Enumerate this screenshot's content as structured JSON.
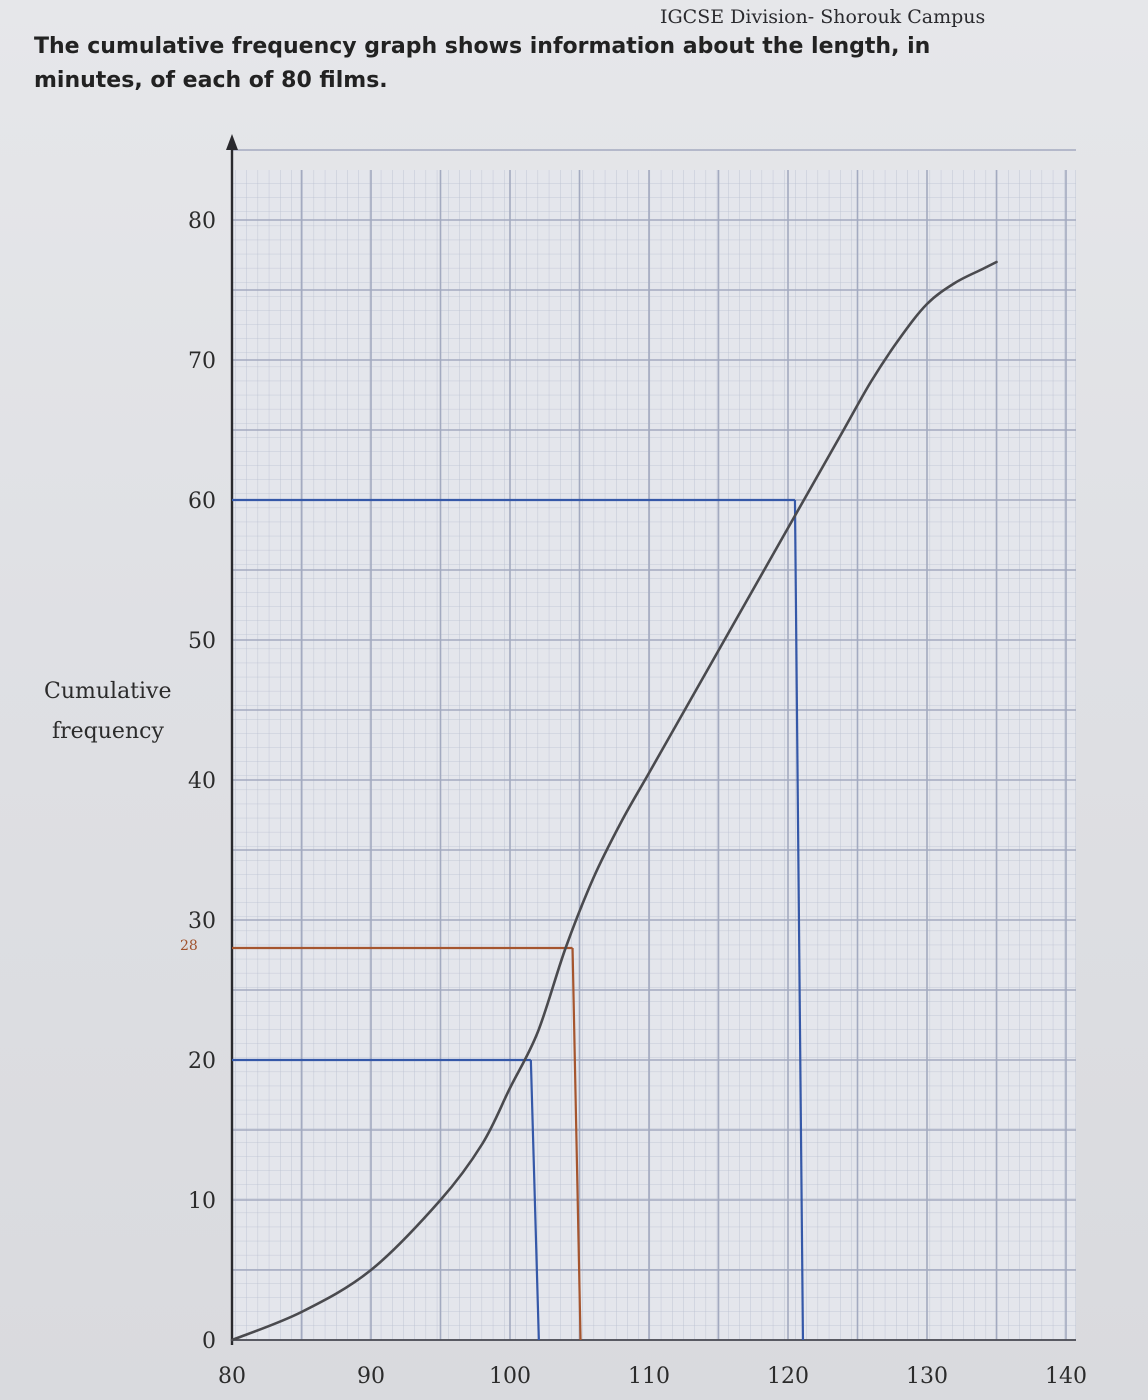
{
  "page": {
    "header": "IGCSE Division- Shorouk Campus",
    "question_line1": "The cumulative frequency graph shows information about the length, in",
    "question_line2": "minutes, of each of 80 films."
  },
  "chart_data": {
    "type": "line",
    "title": "",
    "xlabel": "",
    "ylabel": "Cumulative frequency",
    "xlim": [
      80,
      140
    ],
    "ylim": [
      0,
      80
    ],
    "x_ticks": [
      80,
      90,
      100,
      110,
      120,
      130,
      140
    ],
    "y_ticks": [
      0,
      10,
      20,
      30,
      40,
      50,
      60,
      70,
      80
    ],
    "grid": true,
    "series": [
      {
        "x": [
          80,
          85,
          90,
          95,
          98,
          100,
          102,
          104,
          106,
          108,
          110,
          112,
          114,
          116,
          118,
          120,
          122,
          124,
          126,
          128,
          130,
          132,
          134,
          135
        ],
        "y": [
          0,
          2,
          5,
          10,
          14,
          18,
          22,
          28,
          33,
          37,
          40.5,
          44,
          47.5,
          51,
          54.5,
          58,
          61.5,
          65,
          68.5,
          71.5,
          74,
          75.5,
          76.5,
          77
        ],
        "color": "#4a4a4e"
      }
    ],
    "guide_lines": [
      {
        "y": 60,
        "x": 120.5,
        "color": "#3558a8"
      },
      {
        "y": 28,
        "x": 104.5,
        "color": "#a5552e"
      },
      {
        "y": 20,
        "x": 101.5,
        "color": "#3558a8"
      }
    ],
    "handwritten_y_mark": "28"
  }
}
